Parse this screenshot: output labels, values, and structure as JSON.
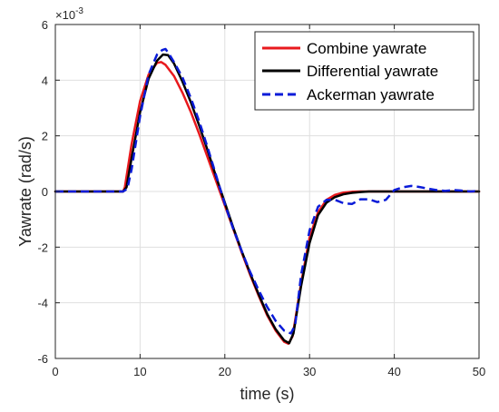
{
  "chart_data": {
    "type": "line",
    "title": "",
    "xlabel": "time (s)",
    "ylabel": "Yawrate (rad/s)",
    "y_exponent_label": "×10",
    "y_exponent_power": "-3",
    "xlim": [
      0,
      50
    ],
    "ylim": [
      -6,
      6
    ],
    "xticks": [
      0,
      10,
      20,
      30,
      40,
      50
    ],
    "yticks": [
      -6,
      -4,
      -2,
      0,
      2,
      4,
      6
    ],
    "xtick_labels": [
      "0",
      "10",
      "20",
      "30",
      "40",
      "50"
    ],
    "ytick_labels": [
      "-6",
      "-4",
      "-2",
      "0",
      "2",
      "4",
      "6"
    ],
    "grid": true,
    "legend_position": "top-right",
    "series": [
      {
        "name": "Combine yawrate",
        "color": "#e8191d",
        "style": "solid",
        "x": [
          0,
          8,
          8.2,
          9,
          10,
          11,
          12,
          12.5,
          13,
          14,
          15,
          16,
          17,
          18,
          19,
          20,
          21,
          22,
          23,
          24,
          25,
          26,
          27,
          27.5,
          28,
          29,
          30,
          31,
          32,
          33,
          34,
          35,
          36,
          37,
          38,
          40,
          45,
          50
        ],
        "y": [
          0,
          0,
          0.15,
          1.7,
          3.25,
          4.2,
          4.62,
          4.65,
          4.55,
          4.15,
          3.55,
          2.85,
          2.05,
          1.2,
          0.35,
          -0.5,
          -1.35,
          -2.2,
          -3.0,
          -3.75,
          -4.45,
          -5.0,
          -5.4,
          -5.47,
          -5.2,
          -3.3,
          -1.65,
          -0.75,
          -0.3,
          -0.12,
          -0.04,
          -0.01,
          0,
          0,
          0,
          0,
          0,
          0
        ]
      },
      {
        "name": "Differential yawrate",
        "color": "#000000",
        "style": "solid",
        "x": [
          0,
          8,
          8.4,
          9,
          10,
          11,
          12,
          12.7,
          13.3,
          14,
          15,
          16,
          17,
          18,
          19,
          20,
          21,
          22,
          23,
          24,
          25,
          26,
          27,
          27.6,
          28.1,
          29,
          30,
          31,
          32,
          33,
          34,
          35,
          36,
          37,
          38,
          40,
          45,
          50
        ],
        "y": [
          0,
          0,
          0.15,
          1.2,
          2.85,
          4.05,
          4.7,
          4.92,
          4.9,
          4.6,
          3.95,
          3.2,
          2.35,
          1.45,
          0.5,
          -0.4,
          -1.3,
          -2.15,
          -2.95,
          -3.7,
          -4.4,
          -4.95,
          -5.35,
          -5.45,
          -5.1,
          -3.4,
          -1.85,
          -0.85,
          -0.4,
          -0.2,
          -0.1,
          -0.05,
          -0.02,
          0,
          0,
          0,
          0,
          0
        ]
      },
      {
        "name": "Ackerman yawrate",
        "color": "#0a1bd8",
        "style": "dashed",
        "x": [
          0,
          8,
          8.5,
          9,
          10,
          11,
          12,
          12.6,
          13,
          13.4,
          14,
          15,
          16,
          17,
          18,
          19,
          20,
          21,
          22,
          23,
          24,
          25,
          26,
          27,
          27.8,
          28.3,
          29,
          30,
          31,
          32,
          33,
          34,
          35,
          36,
          37,
          38,
          39,
          40,
          41,
          42,
          43,
          44,
          45,
          46,
          47,
          48,
          49,
          50
        ],
        "y": [
          0,
          0,
          0.1,
          0.8,
          2.7,
          4.2,
          4.92,
          5.08,
          5.12,
          4.95,
          4.65,
          4.1,
          3.35,
          2.5,
          1.55,
          0.55,
          -0.45,
          -1.35,
          -2.15,
          -2.9,
          -3.55,
          -4.15,
          -4.65,
          -5.0,
          -5.1,
          -4.8,
          -3.0,
          -1.4,
          -0.55,
          -0.3,
          -0.3,
          -0.42,
          -0.45,
          -0.28,
          -0.28,
          -0.38,
          -0.3,
          0.05,
          0.15,
          0.2,
          0.16,
          0.1,
          0.05,
          0.02,
          0.05,
          0.03,
          0.0,
          0.02
        ]
      }
    ]
  }
}
